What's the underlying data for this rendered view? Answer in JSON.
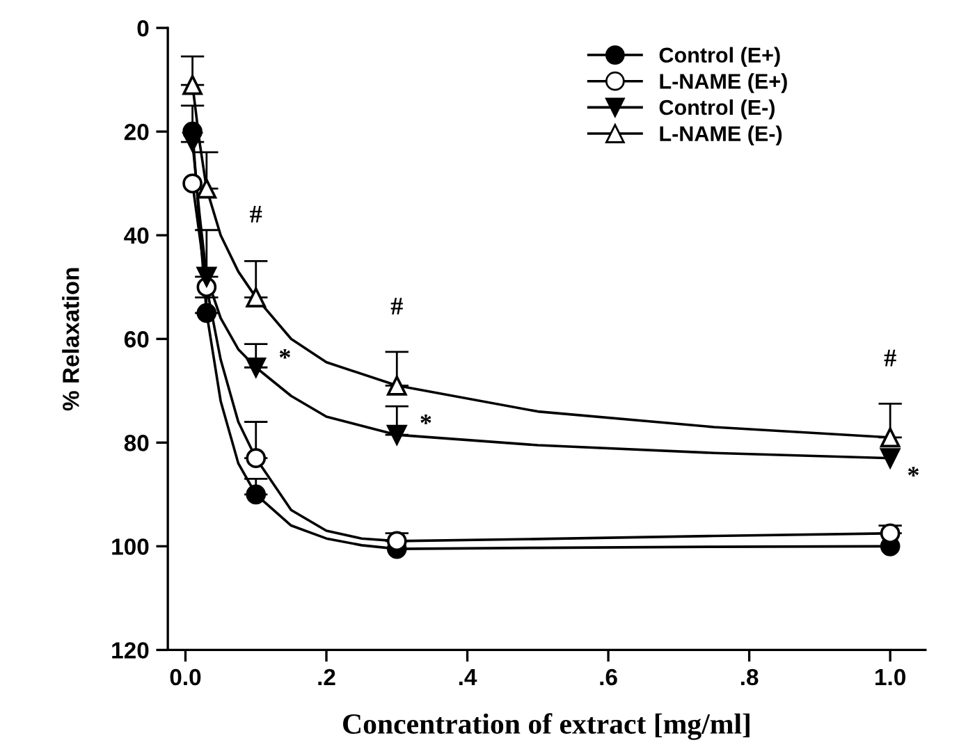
{
  "chart_data": {
    "type": "scatter",
    "xlabel": "Concentration of extract [mg/ml]",
    "ylabel": "% Relaxation",
    "x": [
      0.01,
      0.03,
      0.1,
      0.3,
      1.0
    ],
    "xlim": [
      -0.025,
      1.05
    ],
    "xticks": [
      {
        "value": 0.0,
        "label": "0.0"
      },
      {
        "value": 0.2,
        "label": ".2"
      },
      {
        "value": 0.4,
        "label": ".4"
      },
      {
        "value": 0.6,
        "label": ".6"
      },
      {
        "value": 0.8,
        "label": ".8"
      },
      {
        "value": 1.0,
        "label": "1.0"
      }
    ],
    "ylim": [
      120,
      0
    ],
    "yticks": [
      0,
      20,
      40,
      60,
      80,
      100,
      120
    ],
    "grid": false,
    "legend": "top right",
    "line_style": "solid",
    "series": [
      {
        "name": "Control (E+)",
        "color": "#000000",
        "marker": "circle",
        "values": [
          20,
          55,
          90,
          100.5,
          100
        ],
        "errors": [
          null,
          [
            52,
            55
          ],
          [
            87,
            90
          ],
          null,
          null
        ]
      },
      {
        "name": "L-NAME (E+)",
        "color": "#000000",
        "marker": "circle",
        "values": [
          30,
          50,
          83,
          99,
          97.5
        ],
        "errors": [
          null,
          null,
          [
            76,
            83
          ],
          [
            97.5,
            99
          ],
          [
            96,
            97.5
          ]
        ]
      },
      {
        "name": "Control (E-)",
        "color": "#000000",
        "marker": "triangle",
        "values": [
          22,
          48,
          65.5,
          78.5,
          83
        ],
        "errors": [
          [
            15,
            22
          ],
          [
            39,
            48
          ],
          [
            61,
            65.5
          ],
          [
            73,
            78.5
          ],
          null
        ]
      },
      {
        "name": "L-NAME (E-)",
        "color": "#000000",
        "marker": "triangle",
        "values": [
          11,
          31,
          52,
          69,
          79
        ],
        "errors": [
          [
            5.5,
            11
          ],
          [
            24,
            31
          ],
          [
            45,
            52
          ],
          [
            62.5,
            69
          ],
          [
            72.5,
            79
          ]
        ]
      },
      {
        "type": "line",
        "color": "#000000",
        "marker": "none",
        "x": [
          0.01,
          0.02,
          0.03,
          0.05,
          0.075,
          0.1,
          0.15,
          0.2,
          0.25,
          0.3,
          0.5,
          0.75,
          1.0
        ],
        "values": [
          20,
          38,
          55,
          72,
          84,
          90,
          96,
          98.5,
          99.8,
          100.5,
          100.3,
          100.1,
          100
        ]
      },
      {
        "type": "line",
        "color": "#000000",
        "marker": "none",
        "x": [
          0.01,
          0.02,
          0.03,
          0.05,
          0.075,
          0.1,
          0.15,
          0.2,
          0.25,
          0.3,
          0.5,
          0.75,
          1.0
        ],
        "values": [
          30,
          40,
          50,
          64,
          76,
          83,
          93,
          97,
          98.5,
          99,
          98.6,
          98,
          97.5
        ]
      },
      {
        "type": "line",
        "color": "#000000",
        "marker": "none",
        "x": [
          0.01,
          0.02,
          0.03,
          0.05,
          0.075,
          0.1,
          0.15,
          0.2,
          0.3,
          0.5,
          0.75,
          1.0
        ],
        "values": [
          22,
          36,
          48,
          56,
          62,
          65.5,
          71,
          75,
          78.5,
          80.5,
          82,
          83
        ]
      },
      {
        "type": "line",
        "color": "#000000",
        "marker": "none",
        "x": [
          0.01,
          0.02,
          0.03,
          0.05,
          0.075,
          0.1,
          0.15,
          0.2,
          0.3,
          0.5,
          0.75,
          1.0
        ],
        "values": [
          11,
          22,
          31,
          40,
          47,
          52,
          60,
          64.5,
          69,
          74,
          77,
          79
        ]
      }
    ],
    "annotations": [
      {
        "text": "#",
        "x": 0.1,
        "y": 52
      },
      {
        "text": "#",
        "x": 0.3,
        "y": 69
      },
      {
        "text": "#",
        "x": 1.0,
        "y": 79
      },
      {
        "text": "*",
        "x": 0.1,
        "y": 65.5
      },
      {
        "text": "*",
        "x": 0.3,
        "y": 78.5
      },
      {
        "text": "*",
        "x": 1.0,
        "y": 83
      }
    ]
  }
}
